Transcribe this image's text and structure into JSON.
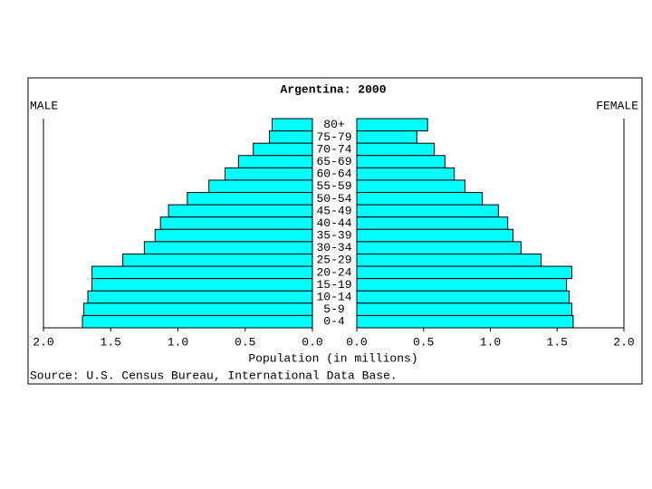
{
  "chart_data": {
    "type": "population_pyramid",
    "title": "Argentina: 2000",
    "xlabel": "Population (in millions)",
    "source": "Source: U.S. Census Bureau, International Data Base.",
    "categories": [
      "80+",
      "75-79",
      "70-74",
      "65-69",
      "60-64",
      "55-59",
      "50-54",
      "45-49",
      "40-44",
      "35-39",
      "30-34",
      "25-29",
      "20-24",
      "15-19",
      "10-14",
      "5-9",
      "0-4"
    ],
    "series": [
      {
        "name": "MALE",
        "color": "#00ffff",
        "values": [
          0.3,
          0.32,
          0.44,
          0.55,
          0.65,
          0.77,
          0.93,
          1.07,
          1.13,
          1.17,
          1.25,
          1.41,
          1.64,
          1.64,
          1.67,
          1.7,
          1.71
        ]
      },
      {
        "name": "FEMALE",
        "color": "#00ffff",
        "values": [
          0.53,
          0.45,
          0.58,
          0.66,
          0.73,
          0.81,
          0.94,
          1.06,
          1.13,
          1.17,
          1.23,
          1.38,
          1.61,
          1.57,
          1.59,
          1.61,
          1.62
        ]
      }
    ],
    "xlim": [
      0,
      2
    ],
    "xticks": [
      {
        "value": 0,
        "label": "0.0"
      },
      {
        "value": 0.5,
        "label": "0.5"
      },
      {
        "value": 1,
        "label": "1.0"
      },
      {
        "value": 1.5,
        "label": "1.5"
      },
      {
        "value": 2,
        "label": "2.0"
      }
    ]
  }
}
